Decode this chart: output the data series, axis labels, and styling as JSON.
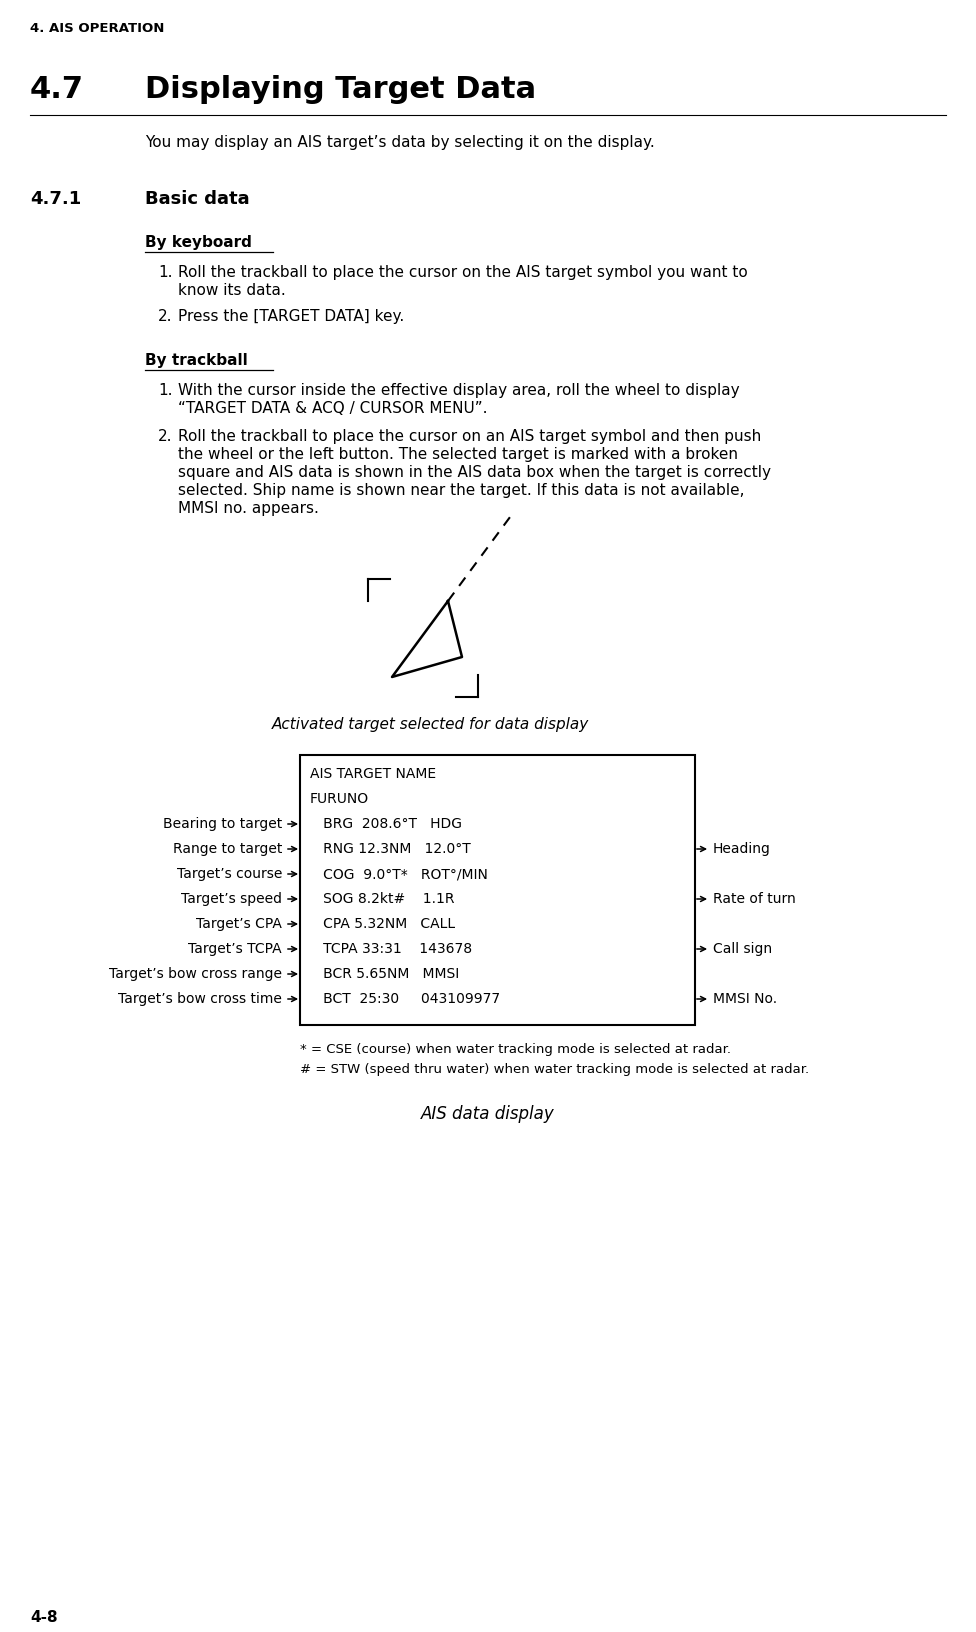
{
  "page_header": "4. AIS OPERATION",
  "section_number": "4.7",
  "section_title": "Displaying Target Data",
  "section_intro": "You may display an AIS target’s data by selecting it on the display.",
  "subsection_number": "4.7.1",
  "subsection_title": "Basic data",
  "keyboard_header": "By keyboard",
  "keyboard_steps": [
    "Roll the trackball to place the cursor on the AIS target symbol you want to\nknow its data.",
    "Press the [TARGET DATA] key."
  ],
  "trackball_header": "By trackball",
  "trackball_steps": [
    "With the cursor inside the effective display area, roll the wheel to display\n“TARGET DATA & ACQ / CURSOR MENU”.",
    "Roll the trackball to place the cursor on an AIS target symbol and then push\nthe wheel or the left button. The selected target is marked with a broken\nsquare and AIS data is shown in the AIS data box when the target is correctly\nselected. Ship name is shown near the target. If this data is not available,\nMMSI no. appears."
  ],
  "figure1_caption": "Activated target selected for data display",
  "ais_box_lines": [
    "AIS TARGET NAME",
    "FURUNO",
    "   BRG  208.6°T   HDG",
    "   RNG 12.3NM   12.0°T",
    "   COG  9.0°T*   ROT°/MIN",
    "   SOG 8.2kt#    1.1R",
    "   CPA 5.32NM   CALL",
    "   TCPA 33:31    143678",
    "   BCR 5.65NM   MMSI",
    "   BCT  25:30     043109977"
  ],
  "left_labels": [
    [
      "Bearing to target",
      2
    ],
    [
      "Range to target",
      3
    ],
    [
      "Target’s course",
      4
    ],
    [
      "Target’s speed",
      5
    ],
    [
      "Target’s CPA",
      6
    ],
    [
      "Target’s TCPA",
      7
    ],
    [
      "Target’s bow cross range",
      8
    ],
    [
      "Target’s bow cross time",
      9
    ]
  ],
  "right_labels": [
    [
      "Heading",
      3
    ],
    [
      "Rate of turn",
      5
    ],
    [
      "Call sign",
      7
    ],
    [
      "MMSI No.",
      9
    ]
  ],
  "footnote1": "* = CSE (course) when water tracking mode is selected at radar.",
  "footnote2": "# = STW (speed thru water) when water tracking mode is selected at radar.",
  "figure2_caption": "AIS data display",
  "page_number": "4-8",
  "bg_color": "#ffffff",
  "text_color": "#000000"
}
